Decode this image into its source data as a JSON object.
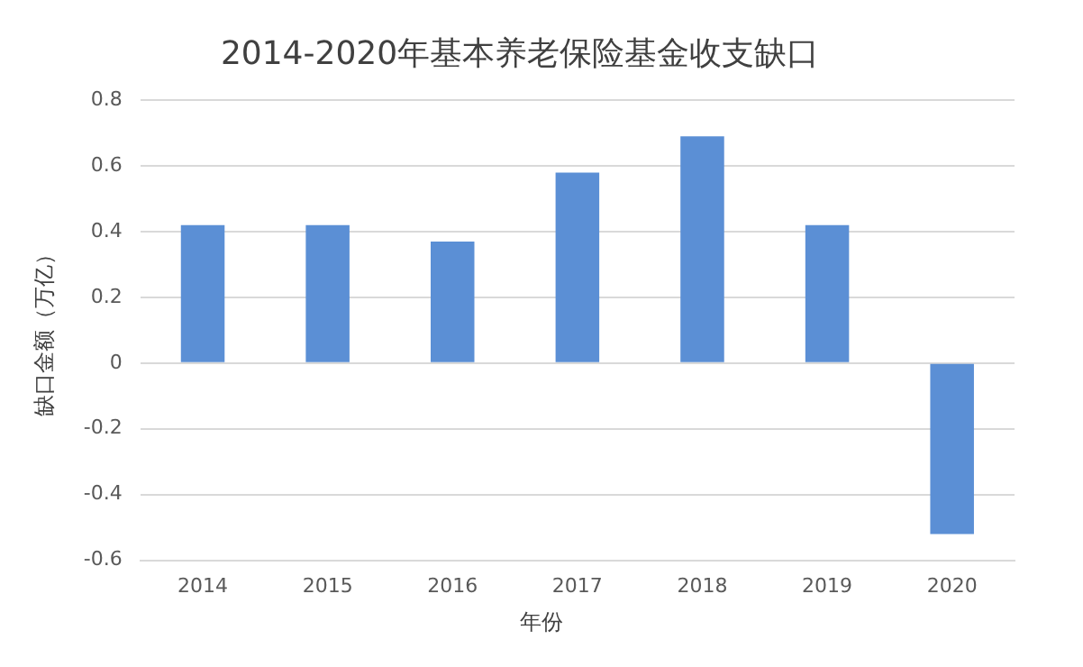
{
  "chart_data": {
    "type": "bar",
    "title": "2014-2020年基本养老保险基金收支缺口",
    "xlabel": "年份",
    "ylabel": "缺口金额（万亿）",
    "categories": [
      "2014",
      "2015",
      "2016",
      "2017",
      "2018",
      "2019",
      "2020"
    ],
    "values": [
      0.42,
      0.42,
      0.37,
      0.58,
      0.69,
      0.42,
      -0.52
    ],
    "color": "#5b8fd5",
    "ylim": [
      -0.6,
      0.8
    ],
    "yticks": [
      -0.6,
      -0.4,
      -0.2,
      0,
      0.2,
      0.4,
      0.6,
      0.8
    ],
    "grid": "y"
  }
}
